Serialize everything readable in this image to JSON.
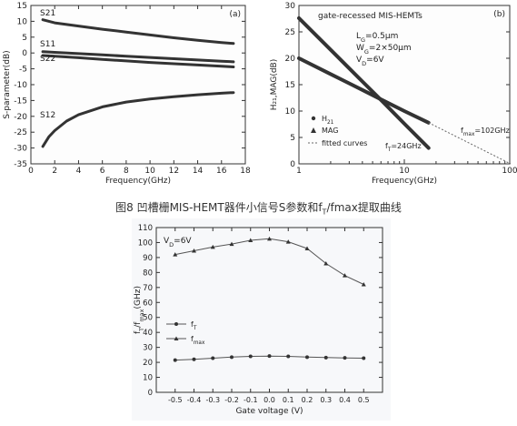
{
  "caption": {
    "prefix": "图8 凹槽栅MIS-HEMT器件小信号S参数和f",
    "sub": "T",
    "suffix": "/fmax提取曲线"
  },
  "chart_data": [
    {
      "id": "a",
      "type": "line",
      "panel_label": "(a)",
      "xlabel": "Frequency(GHz)",
      "ylabel": "S-parameter(dB)",
      "xlim": [
        0,
        18
      ],
      "ylim": [
        -35,
        15
      ],
      "xticks": [
        0,
        2,
        4,
        6,
        8,
        10,
        12,
        14,
        16,
        18
      ],
      "yticks": [
        -35,
        -30,
        -25,
        -20,
        -15,
        -10,
        -5,
        0,
        5,
        10,
        15
      ],
      "series": [
        {
          "name": "S21",
          "x": [
            1,
            2,
            4,
            6,
            8,
            10,
            12,
            14,
            16,
            17
          ],
          "y": [
            10.5,
            9.5,
            8.5,
            7.5,
            6.6,
            5.7,
            4.8,
            4.0,
            3.3,
            3.0
          ]
        },
        {
          "name": "S11",
          "x": [
            1,
            2,
            4,
            6,
            8,
            10,
            12,
            14,
            16,
            17
          ],
          "y": [
            0.4,
            0.2,
            -0.2,
            -0.6,
            -1.0,
            -1.4,
            -1.8,
            -2.2,
            -2.6,
            -2.8
          ]
        },
        {
          "name": "S22",
          "x": [
            1,
            2,
            4,
            6,
            8,
            10,
            12,
            14,
            16,
            17
          ],
          "y": [
            -0.8,
            -1.0,
            -1.5,
            -2.0,
            -2.5,
            -3.0,
            -3.4,
            -3.8,
            -4.2,
            -4.4
          ]
        },
        {
          "name": "S12",
          "x": [
            1,
            1.5,
            2,
            3,
            4,
            6,
            8,
            10,
            12,
            14,
            16,
            17
          ],
          "y": [
            -29.5,
            -26.5,
            -24.5,
            -21.5,
            -19.5,
            -17.0,
            -15.5,
            -14.5,
            -13.8,
            -13.2,
            -12.7,
            -12.5
          ]
        }
      ]
    },
    {
      "id": "b",
      "type": "line",
      "panel_label": "(b)",
      "title": "gate-recessed MIS-HEMTs",
      "xlabel": "Frequency(GHz)",
      "ylabel": "H₂₁,MAG(dB)",
      "xscale": "log",
      "xlim": [
        1,
        100
      ],
      "ylim": [
        0,
        30
      ],
      "xticks": [
        1,
        10,
        100
      ],
      "yticks": [
        0,
        5,
        10,
        15,
        20,
        25,
        30
      ],
      "params": [
        "LG=0.5μm",
        "WG=2×50μm",
        "VD=6V"
      ],
      "legend": [
        "H21",
        "MAG",
        "fitted curves"
      ],
      "legend_position": "lower-left",
      "annotations": [
        "fT=24GHz",
        "fmax=102GHz"
      ],
      "series": [
        {
          "name": "H21",
          "x": [
            1,
            2,
            4,
            6,
            10,
            17
          ],
          "y": [
            27.6,
            21.6,
            15.6,
            12.1,
            7.6,
            3.0
          ]
        },
        {
          "name": "MAG",
          "x": [
            1,
            2,
            4,
            6,
            10,
            17
          ],
          "y": [
            20.0,
            17.0,
            14.0,
            12.2,
            10.0,
            7.8
          ]
        },
        {
          "name": "fitted curves",
          "x": [
            17,
            24,
            102
          ],
          "y": [
            7.8,
            6.3,
            0
          ]
        }
      ]
    },
    {
      "id": "c",
      "type": "line",
      "xlabel": "Gate voltage (V)",
      "ylabel": "fT/fmax(GHz)",
      "xlim": [
        -0.6,
        0.6
      ],
      "ylim": [
        0,
        110
      ],
      "xticks": [
        -0.5,
        -0.4,
        -0.3,
        -0.2,
        -0.1,
        0.0,
        0.1,
        0.2,
        0.3,
        0.4,
        0.5
      ],
      "yticks": [
        0,
        10,
        20,
        30,
        40,
        50,
        60,
        70,
        80,
        90,
        100,
        110
      ],
      "annotation": "VD=6V",
      "legend": [
        "fT",
        "fmax"
      ],
      "series": [
        {
          "name": "fT",
          "x": [
            -0.5,
            -0.4,
            -0.3,
            -0.2,
            -0.1,
            0.0,
            0.1,
            0.2,
            0.3,
            0.4,
            0.5
          ],
          "y": [
            21.5,
            22.0,
            22.8,
            23.5,
            24.0,
            24.2,
            24.0,
            23.5,
            23.2,
            23.0,
            22.8
          ]
        },
        {
          "name": "fmax",
          "x": [
            -0.5,
            -0.4,
            -0.3,
            -0.2,
            -0.1,
            0.0,
            0.1,
            0.2,
            0.3,
            0.4,
            0.5
          ],
          "y": [
            92,
            94.5,
            97,
            99,
            101.5,
            102.5,
            100.5,
            96,
            86,
            78,
            72
          ]
        }
      ]
    }
  ]
}
